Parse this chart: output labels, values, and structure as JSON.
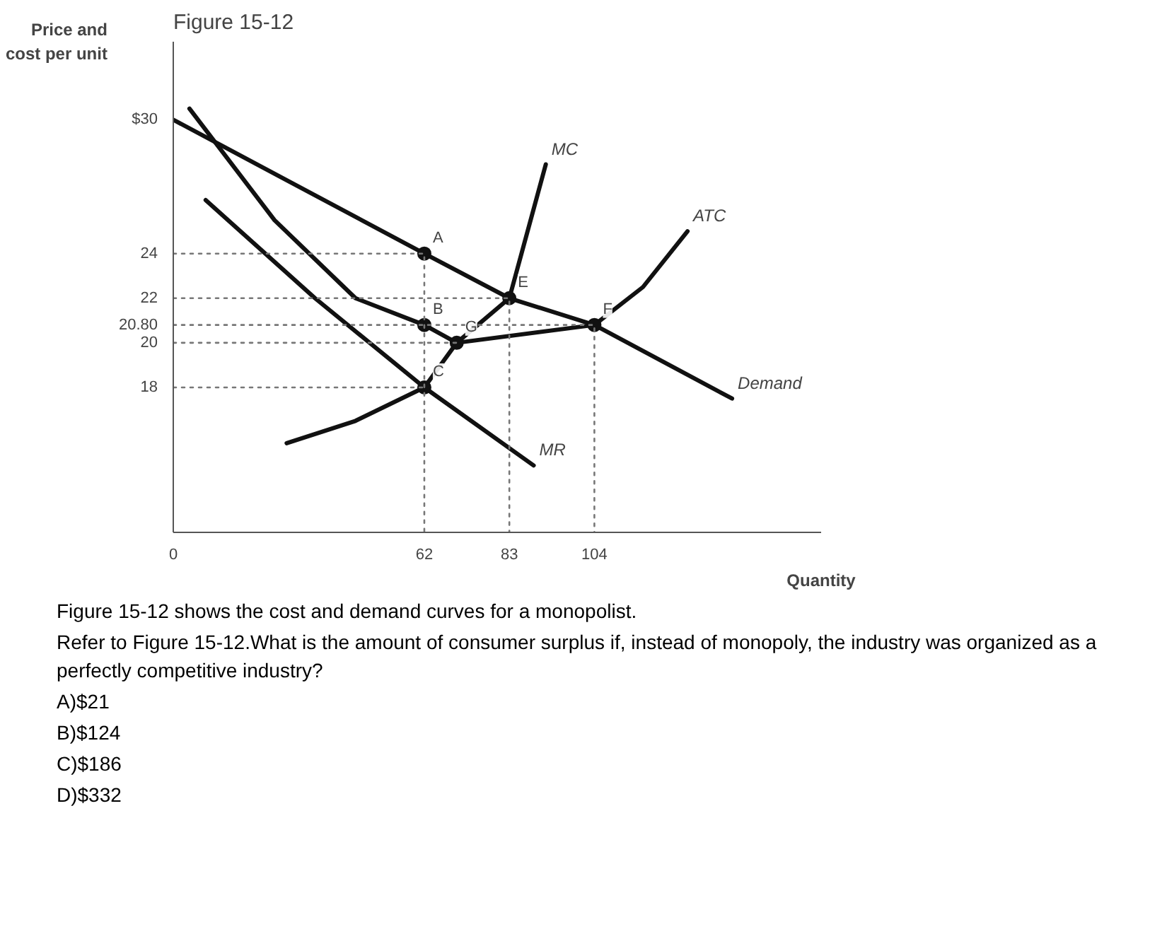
{
  "chart_data": {
    "type": "line",
    "title": "Figure 15-12",
    "ylabel": "Price and\ncost per unit",
    "xlabel": "Quantity",
    "xlim": [
      0,
      160
    ],
    "ylim": [
      11.5,
      33.5
    ],
    "xticks": [
      0,
      62,
      83,
      104
    ],
    "yticks": [
      {
        "value": 30,
        "label": "$30"
      },
      24,
      22,
      {
        "value": 20.8,
        "label": "20.80"
      },
      20,
      18
    ],
    "grid": false,
    "marker": "none",
    "line_style": "solid",
    "series": [
      {
        "name": "Demand",
        "color": "#111111",
        "x": [
          0,
          62,
          83,
          104,
          138
        ],
        "values": [
          30,
          24,
          22,
          20.8,
          17.5
        ]
      },
      {
        "name": "MR",
        "color": "#111111",
        "x": [
          8,
          35,
          62,
          89
        ],
        "values": [
          26.4,
          22,
          18,
          14.5
        ]
      },
      {
        "name": "MC",
        "color": "#111111",
        "x": [
          28,
          45,
          62,
          70,
          83,
          92
        ],
        "values": [
          15.5,
          16.5,
          18,
          20,
          22,
          28
        ]
      },
      {
        "name": "ATC",
        "color": "#111111",
        "x": [
          4,
          25,
          45,
          62,
          70,
          104,
          116,
          127
        ],
        "values": [
          30.5,
          25.5,
          22,
          20.8,
          20,
          20.8,
          22.5,
          25
        ]
      },
      {
        "type": "scatter",
        "marker": "circle",
        "color": "#111111",
        "x": [
          62,
          62,
          62,
          83,
          104,
          70
        ],
        "values": [
          24,
          20.8,
          18,
          22,
          20.8,
          20
        ]
      },
      {
        "line_style": "dotted",
        "color": "#777777",
        "x": [
          0,
          62,
          62
        ],
        "values": [
          24,
          24,
          11.5
        ]
      },
      {
        "line_style": "dotted",
        "color": "#777777",
        "x": [
          0,
          83,
          83
        ],
        "values": [
          22,
          22,
          11.5
        ]
      },
      {
        "line_style": "dotted",
        "color": "#777777",
        "x": [
          0,
          104,
          104
        ],
        "values": [
          20.8,
          20.8,
          11.5
        ]
      },
      {
        "line_style": "dotted",
        "color": "#777777",
        "x": [
          0,
          70
        ],
        "values": [
          20,
          20
        ]
      },
      {
        "line_style": "dotted",
        "color": "#777777",
        "x": [
          0,
          62
        ],
        "values": [
          18,
          18
        ]
      }
    ],
    "annotations": [
      {
        "text": "A",
        "x": 62,
        "y": 24
      },
      {
        "text": "B",
        "x": 62,
        "y": 20.8
      },
      {
        "text": "C",
        "x": 62,
        "y": 18
      },
      {
        "text": "E",
        "x": 83,
        "y": 22
      },
      {
        "text": "F",
        "x": 104,
        "y": 20.8
      },
      {
        "text": "G",
        "x": 70,
        "y": 20
      },
      "Figure 15-12 shows the cost and demand curves for a monopolist.",
      "Refer to Figure 15-12.What is the amount of consumer surplus if, instead of monopoly, the industry was organized as a perfectly competitive industry?",
      "A)$21",
      "B)$124",
      "C)$186",
      "D)$332"
    ]
  }
}
